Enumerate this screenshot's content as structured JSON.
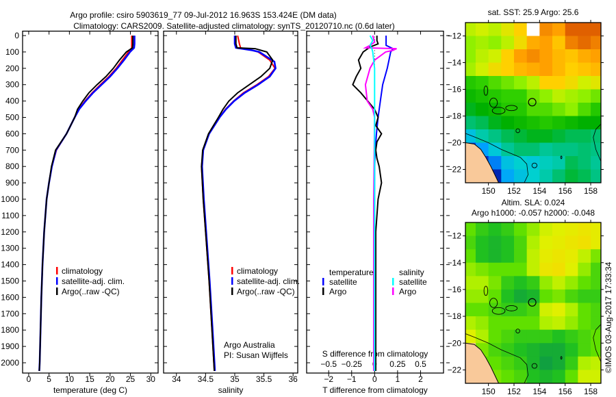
{
  "title_line1": "Argo profile: csiro 5903619_77 09-Jul-2012 16.963S 153.424E (DM data)",
  "title_line2": "Climatology: CARS2009. Satellite-adjusted climatology: synTS_20120710.nc (0.6d later)",
  "credit": "Argo Australia",
  "pi": "PI: Susan Wijffels",
  "timestamp": "©IMOS 03-Aug-2017 17:33:34",
  "colors": {
    "climatology": "#ff0000",
    "satellite": "#0000ff",
    "argo": "#000000",
    "sal_satellite": "#00ffff",
    "sal_argo": "#ff00ff",
    "land": "#f9c99a"
  },
  "chart_data": [
    {
      "type": "line",
      "id": "temperature",
      "xlabel": "temperature (deg C)",
      "ylabel": "",
      "xlim": [
        -1.5,
        31.8
      ],
      "ylim": [
        0,
        2146
      ],
      "y_inverted": true,
      "xticks": [
        0,
        5,
        10,
        15,
        20,
        25,
        30
      ],
      "yticks": [
        0,
        100,
        200,
        300,
        400,
        500,
        600,
        700,
        800,
        900,
        1000,
        1100,
        1200,
        1300,
        1400,
        1500,
        1600,
        1700,
        1800,
        1900,
        2000
      ],
      "legend": [
        "climatology",
        "satellite-adj. clim.",
        "Argo(..raw -QC)"
      ],
      "series": [
        {
          "name": "climatology",
          "color": "#ff0000",
          "depth": [
            0,
            50,
            75,
            100,
            150,
            200,
            250,
            300,
            350,
            400,
            450,
            500,
            600,
            700,
            800,
            900,
            1000,
            1200,
            1400,
            1600,
            1800,
            2000,
            2050
          ],
          "values": [
            25.3,
            25.3,
            25.3,
            24.5,
            23.0,
            21.5,
            19.7,
            17.6,
            15.6,
            13.8,
            12.3,
            11.3,
            9.3,
            6.8,
            5.7,
            5.0,
            4.4,
            3.8,
            3.4,
            3.1,
            2.9,
            2.7,
            2.6
          ]
        },
        {
          "name": "satellite-adj. clim.",
          "color": "#0000ff",
          "depth": [
            0,
            50,
            75,
            100,
            150,
            200,
            250,
            300,
            350,
            400,
            450,
            500,
            600,
            700,
            800,
            900,
            1000,
            1200,
            1400,
            1600,
            1800,
            2000,
            2050
          ],
          "values": [
            26.0,
            26.0,
            25.9,
            24.9,
            23.4,
            21.8,
            20.0,
            17.9,
            15.8,
            14.0,
            12.4,
            11.3,
            9.3,
            6.7,
            5.7,
            5.0,
            4.4,
            3.8,
            3.4,
            3.1,
            2.9,
            2.7,
            2.6
          ]
        },
        {
          "name": "Argo(..raw -QC)",
          "color": "#000000",
          "depth": [
            0,
            50,
            75,
            100,
            150,
            200,
            250,
            300,
            350,
            400,
            450,
            500,
            600,
            700,
            800,
            900,
            1000,
            1200,
            1400,
            1600,
            1800,
            2000,
            2050
          ],
          "values": [
            25.6,
            25.6,
            25.5,
            24.0,
            22.3,
            20.8,
            19.0,
            16.8,
            14.8,
            13.3,
            12.0,
            11.3,
            9.3,
            6.6,
            5.6,
            5.0,
            4.4,
            3.8,
            3.4,
            3.1,
            2.9,
            2.7,
            2.6
          ]
        }
      ]
    },
    {
      "type": "line",
      "id": "salinity",
      "xlabel": "salinity",
      "ylabel": "",
      "xlim": [
        33.78,
        36.08
      ],
      "ylim": [
        0,
        2146
      ],
      "y_inverted": true,
      "xticks": [
        34,
        34.5,
        35,
        35.5,
        36
      ],
      "legend": [
        "climatology",
        "satellite-adj. clim.",
        "Argo(..raw -QC)"
      ],
      "series": [
        {
          "name": "climatology",
          "color": "#ff0000",
          "depth": [
            0,
            50,
            75,
            90,
            100,
            150,
            200,
            250,
            300,
            350,
            400,
            450,
            500,
            600,
            700,
            800,
            1000,
            1200,
            1500,
            1800,
            2050
          ],
          "values": [
            35.05,
            35.08,
            35.1,
            35.3,
            35.4,
            35.6,
            35.69,
            35.58,
            35.38,
            35.15,
            34.98,
            34.84,
            34.74,
            34.56,
            34.46,
            34.43,
            34.46,
            34.5,
            34.56,
            34.61,
            34.65
          ]
        },
        {
          "name": "satellite-adj. clim.",
          "color": "#0000ff",
          "depth": [
            0,
            50,
            75,
            90,
            100,
            160,
            200,
            250,
            300,
            350,
            400,
            450,
            500,
            600,
            700,
            800,
            1000,
            1200,
            1500,
            1800,
            2050
          ],
          "values": [
            35.0,
            35.0,
            35.02,
            35.3,
            35.42,
            35.68,
            35.7,
            35.6,
            35.4,
            35.17,
            34.99,
            34.85,
            34.74,
            34.56,
            34.46,
            34.44,
            34.47,
            34.51,
            34.57,
            34.62,
            34.66
          ]
        },
        {
          "name": "Argo(..raw -QC)",
          "color": "#000000",
          "depth": [
            0,
            50,
            75,
            80,
            100,
            150,
            200,
            250,
            300,
            350,
            400,
            450,
            500,
            600,
            700,
            800,
            1000,
            1200,
            1500,
            1800,
            2050
          ],
          "values": [
            35.02,
            35.02,
            35.04,
            35.35,
            35.55,
            35.65,
            35.6,
            35.45,
            35.25,
            35.05,
            34.9,
            34.8,
            34.72,
            34.55,
            34.45,
            34.43,
            34.46,
            34.5,
            34.56,
            34.61,
            34.65
          ]
        }
      ]
    },
    {
      "type": "line",
      "id": "differences",
      "xlabel": "T difference from climatology",
      "x2label": "S difference from climatology",
      "xlim": [
        -2.96,
        3.0
      ],
      "ylim": [
        0,
        2146
      ],
      "y_inverted": true,
      "xticks": [
        -2,
        -1,
        0,
        1,
        2
      ],
      "x2ticks": [
        -0.5,
        -0.25,
        0,
        0.25,
        0.5
      ],
      "x2ticklabels": [
        "-0.5",
        "-0.25",
        "0",
        "0.25",
        "0.5"
      ],
      "s_to_t_factor": 4,
      "legend_temperature": {
        "title": "temperature",
        "items": [
          "satellite",
          "Argo"
        ]
      },
      "legend_salinity": {
        "title": "salinity",
        "items": [
          "satellite",
          "Argo"
        ]
      },
      "series": [
        {
          "name": "T satellite",
          "units": "T",
          "color": "#0000ff",
          "depth": [
            0,
            60,
            80,
            100,
            200,
            300,
            400,
            500,
            600,
            700,
            800,
            2050
          ],
          "values": [
            0.5,
            0.5,
            0.8,
            0.7,
            0.55,
            0.35,
            0.25,
            0.15,
            0.08,
            0.03,
            0.0,
            -0.02
          ]
        },
        {
          "name": "T Argo",
          "units": "T",
          "color": "#000000",
          "depth": [
            0,
            30,
            50,
            70,
            100,
            150,
            200,
            250,
            300,
            350,
            400,
            450,
            500,
            550,
            600,
            650,
            700,
            750,
            800,
            900,
            1000,
            1200,
            2050
          ],
          "values": [
            0.1,
            0.1,
            0.15,
            -0.2,
            -0.5,
            -0.7,
            -0.6,
            -0.8,
            -0.95,
            -0.6,
            -0.3,
            0.0,
            0.15,
            0.05,
            0.3,
            0.1,
            0.05,
            0.1,
            0.2,
            0.3,
            0.15,
            0.05,
            0.05
          ]
        },
        {
          "name": "S Argo",
          "units": "S",
          "color": "#ff00ff",
          "depth": [
            0,
            40,
            60,
            75,
            80,
            90,
            100,
            150,
            200,
            300,
            400,
            450,
            500,
            1000,
            2050
          ],
          "values": [
            -0.02,
            0.0,
            -0.05,
            -0.1,
            0.24,
            0.2,
            0.12,
            0.0,
            -0.05,
            -0.1,
            -0.08,
            -0.02,
            0.0,
            -0.01,
            -0.01
          ]
        },
        {
          "name": "S satellite",
          "units": "S",
          "color": "#00ffff",
          "depth": [
            0,
            30,
            60,
            80,
            100,
            200,
            2050
          ],
          "values": [
            -0.05,
            -0.02,
            -0.05,
            -0.03,
            -0.02,
            0.0,
            0.0
          ]
        }
      ]
    },
    {
      "type": "heatmap",
      "id": "sst_map",
      "title": "sat. SST: 25.9 Argo: 25.6",
      "xlim": [
        148.2,
        158.8
      ],
      "ylim": [
        -11,
        -23
      ],
      "xticks": [
        150,
        152,
        154,
        156,
        158
      ],
      "yticks": [
        -12,
        -14,
        -16,
        -18,
        -20,
        -22
      ],
      "lon": [
        148.5,
        149.5,
        150.5,
        151.5,
        152.5,
        153.5,
        154.5,
        155.5,
        156.5,
        157.5,
        158.5
      ],
      "lat": [
        -11.5,
        -12.5,
        -13.5,
        -14.5,
        -15.5,
        -16.5,
        -17.5,
        -18.5,
        -19.5,
        -20.5,
        -21.5,
        -22.5
      ],
      "color_stops": [
        [
          22.5,
          "#00108f"
        ],
        [
          23.2,
          "#0040e0"
        ],
        [
          23.8,
          "#00a0ff"
        ],
        [
          24.4,
          "#00d0d0"
        ],
        [
          24.9,
          "#00c070"
        ],
        [
          25.3,
          "#00b000"
        ],
        [
          25.7,
          "#30d000"
        ],
        [
          26.0,
          "#90f000"
        ],
        [
          26.3,
          "#d0f000"
        ],
        [
          26.6,
          "#ffd000"
        ],
        [
          27.0,
          "#ffa000"
        ],
        [
          27.6,
          "#e06000"
        ]
      ],
      "values": [
        [
          26.2,
          26.3,
          26.2,
          26.4,
          26.6,
          null,
          27.2,
          27.0,
          27.6,
          27.8,
          27.6
        ],
        [
          26.0,
          26.1,
          26.0,
          26.2,
          26.5,
          26.9,
          27.0,
          26.7,
          27.3,
          27.5,
          27.3
        ],
        [
          26.0,
          26.2,
          26.3,
          26.6,
          27.0,
          27.2,
          27.0,
          26.8,
          26.7,
          26.9,
          27.0
        ],
        [
          26.1,
          26.3,
          26.5,
          26.6,
          26.8,
          26.9,
          27.0,
          26.8,
          26.6,
          26.7,
          26.8
        ],
        [
          25.6,
          25.7,
          25.8,
          25.9,
          26.0,
          26.2,
          26.6,
          26.6,
          26.5,
          26.3,
          26.4
        ],
        [
          25.4,
          25.5,
          25.6,
          25.7,
          25.7,
          25.9,
          26.0,
          26.2,
          26.1,
          26.0,
          25.9
        ],
        [
          25.2,
          25.3,
          25.4,
          25.6,
          25.6,
          25.8,
          25.8,
          25.9,
          26.0,
          25.8,
          25.6
        ],
        [
          24.9,
          25.0,
          25.2,
          25.3,
          25.4,
          25.5,
          25.6,
          25.5,
          25.4,
          25.3,
          25.3
        ],
        [
          24.2,
          24.6,
          24.8,
          25.0,
          25.1,
          25.2,
          25.2,
          25.1,
          25.0,
          25.0,
          24.9
        ],
        [
          23.2,
          23.8,
          24.3,
          24.7,
          24.9,
          24.9,
          24.7,
          24.8,
          24.8,
          24.9,
          24.8
        ],
        [
          null,
          23.0,
          23.6,
          24.2,
          24.4,
          24.3,
          24.5,
          24.6,
          25.0,
          24.9,
          24.7
        ],
        [
          null,
          22.6,
          22.8,
          23.9,
          24.2,
          24.4,
          24.6,
          24.9,
          25.1,
          25.0,
          24.8
        ]
      ],
      "argo_position": [
        153.424,
        -16.963
      ]
    },
    {
      "type": "heatmap",
      "id": "sla_map",
      "title": "Altim. SLA: 0.024",
      "subtitle": "Argo h1000: -0.057 h2000: -0.048",
      "xlim": [
        148.2,
        158.8
      ],
      "ylim": [
        -11,
        -23
      ],
      "xticks": [
        150,
        152,
        154,
        156,
        158
      ],
      "yticks": [
        -12,
        -14,
        -16,
        -18,
        -20,
        -22
      ],
      "lon": [
        148.5,
        149.5,
        150.5,
        151.5,
        152.5,
        153.5,
        154.5,
        155.5,
        156.5,
        157.5,
        158.5
      ],
      "lat": [
        -11.5,
        -12.5,
        -13.5,
        -14.5,
        -15.5,
        -16.5,
        -17.5,
        -18.5,
        -19.5,
        -20.5,
        -21.5,
        -22.5
      ],
      "color_stops": [
        [
          -0.06,
          "#10a040"
        ],
        [
          -0.03,
          "#20c020"
        ],
        [
          0.0,
          "#60e000"
        ],
        [
          0.03,
          "#b0f000"
        ],
        [
          0.06,
          "#e0f000"
        ],
        [
          0.09,
          "#f0e000"
        ]
      ],
      "values": [
        [
          0.0,
          -0.02,
          -0.03,
          -0.02,
          0.0,
          0.02,
          0.05,
          0.06,
          0.07,
          0.08,
          0.07
        ],
        [
          -0.01,
          -0.03,
          -0.04,
          -0.03,
          -0.01,
          0.03,
          0.06,
          0.07,
          0.08,
          0.09,
          0.07
        ],
        [
          0.0,
          -0.03,
          -0.04,
          -0.03,
          -0.01,
          0.04,
          0.07,
          0.08,
          0.07,
          0.04,
          0.01
        ],
        [
          0.02,
          0.01,
          0.0,
          0.0,
          0.0,
          0.04,
          0.08,
          0.09,
          0.06,
          0.02,
          -0.01
        ],
        [
          0.03,
          0.03,
          0.01,
          -0.02,
          -0.03,
          -0.02,
          0.02,
          0.04,
          0.02,
          0.0,
          -0.01
        ],
        [
          0.02,
          0.02,
          0.0,
          -0.03,
          -0.05,
          -0.04,
          0.0,
          0.01,
          -0.01,
          -0.02,
          -0.02
        ],
        [
          0.0,
          0.0,
          -0.01,
          -0.02,
          -0.02,
          -0.01,
          0.05,
          0.06,
          0.03,
          0.0,
          -0.01
        ],
        [
          0.03,
          0.02,
          0.0,
          0.0,
          0.0,
          0.0,
          0.03,
          0.04,
          0.02,
          0.0,
          -0.01
        ],
        [
          0.06,
          0.03,
          0.0,
          -0.01,
          -0.02,
          -0.02,
          -0.02,
          -0.03,
          -0.02,
          -0.01,
          0.0
        ],
        [
          null,
          0.01,
          -0.01,
          -0.02,
          -0.03,
          -0.04,
          -0.05,
          -0.05,
          -0.03,
          -0.01,
          0.0
        ],
        [
          null,
          0.0,
          0.0,
          -0.01,
          -0.02,
          -0.04,
          -0.06,
          -0.05,
          -0.02,
          0.03,
          0.04
        ],
        [
          null,
          null,
          0.01,
          0.0,
          -0.01,
          -0.03,
          -0.04,
          -0.03,
          0.0,
          0.05,
          0.05
        ]
      ],
      "argo_position": [
        153.424,
        -16.963
      ]
    }
  ]
}
